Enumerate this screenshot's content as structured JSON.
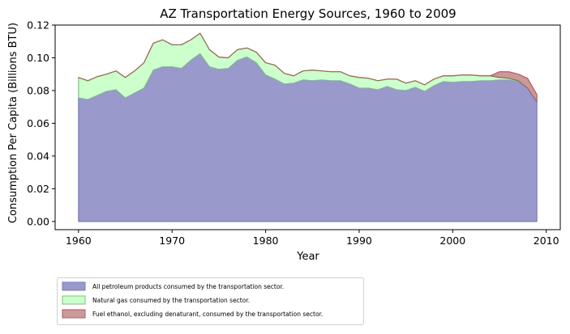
{
  "chart_data": {
    "type": "area",
    "stacked": true,
    "title": "AZ Transportation Energy Sources, 1960 to 2009",
    "xlabel": "Year",
    "ylabel": "Consumption Per Capita (Billions BTU)",
    "xlim": [
      1957.5,
      2011.5
    ],
    "ylim": [
      -0.005,
      0.12
    ],
    "xticks": [
      1960,
      1970,
      1980,
      1990,
      2000,
      2010
    ],
    "yticks": [
      0.0,
      0.02,
      0.04,
      0.06,
      0.08,
      0.1,
      0.12
    ],
    "ytick_labels": [
      "0.00",
      "0.02",
      "0.04",
      "0.06",
      "0.08",
      "0.10",
      "0.12"
    ],
    "legend_position": "below",
    "x": [
      1960,
      1961,
      1962,
      1963,
      1964,
      1965,
      1966,
      1967,
      1968,
      1969,
      1970,
      1971,
      1972,
      1973,
      1974,
      1975,
      1976,
      1977,
      1978,
      1979,
      1980,
      1981,
      1982,
      1983,
      1984,
      1985,
      1986,
      1987,
      1988,
      1989,
      1990,
      1991,
      1992,
      1993,
      1994,
      1995,
      1996,
      1997,
      1998,
      1999,
      2000,
      2001,
      2002,
      2003,
      2004,
      2005,
      2006,
      2007,
      2008,
      2009
    ],
    "series": [
      {
        "name": "All petroleum products consumed by the transportation sector.",
        "color": "#9999cc",
        "edge": "#7b7bc0",
        "values": [
          0.0755,
          0.0745,
          0.077,
          0.0795,
          0.0805,
          0.0755,
          0.0785,
          0.0815,
          0.0925,
          0.0945,
          0.0945,
          0.0935,
          0.0985,
          0.1025,
          0.0945,
          0.093,
          0.0935,
          0.0985,
          0.1005,
          0.097,
          0.0895,
          0.087,
          0.084,
          0.0845,
          0.0865,
          0.086,
          0.0865,
          0.086,
          0.086,
          0.084,
          0.0815,
          0.0815,
          0.0805,
          0.0825,
          0.0805,
          0.08,
          0.082,
          0.0795,
          0.083,
          0.0855,
          0.085,
          0.0855,
          0.0855,
          0.086,
          0.086,
          0.0865,
          0.0865,
          0.0855,
          0.0815,
          0.073
        ]
      },
      {
        "name": "Natural gas consumed by the transportation sector.",
        "color": "#ccffcc",
        "edge": "#7dc27d",
        "values": [
          0.0125,
          0.0115,
          0.0115,
          0.0105,
          0.0115,
          0.0125,
          0.0135,
          0.0155,
          0.0165,
          0.0165,
          0.0135,
          0.0145,
          0.0125,
          0.0125,
          0.0105,
          0.0075,
          0.0065,
          0.0065,
          0.0055,
          0.0065,
          0.0075,
          0.0085,
          0.0065,
          0.0045,
          0.0055,
          0.0065,
          0.0055,
          0.0055,
          0.0055,
          0.005,
          0.0065,
          0.006,
          0.0055,
          0.0045,
          0.0065,
          0.0045,
          0.004,
          0.004,
          0.004,
          0.0035,
          0.004,
          0.004,
          0.004,
          0.003,
          0.003,
          0.0015,
          0.001,
          0.0005,
          0.0,
          0.0
        ]
      },
      {
        "name": "Fuel ethanol, excluding denaturant, consumed by the transportation sector.",
        "color": "#cc9999",
        "edge": "#a85e5e",
        "values": [
          0,
          0,
          0,
          0,
          0,
          0,
          0,
          0,
          0,
          0,
          0,
          0,
          0,
          0,
          0,
          0,
          0,
          0,
          0,
          0,
          0,
          0,
          0,
          0,
          0,
          0,
          0,
          0,
          0,
          0,
          0,
          0,
          0,
          0,
          0,
          0,
          0,
          0,
          0,
          0,
          0,
          0,
          0,
          0,
          0,
          0.0035,
          0.004,
          0.004,
          0.006,
          0.0045
        ]
      }
    ]
  }
}
